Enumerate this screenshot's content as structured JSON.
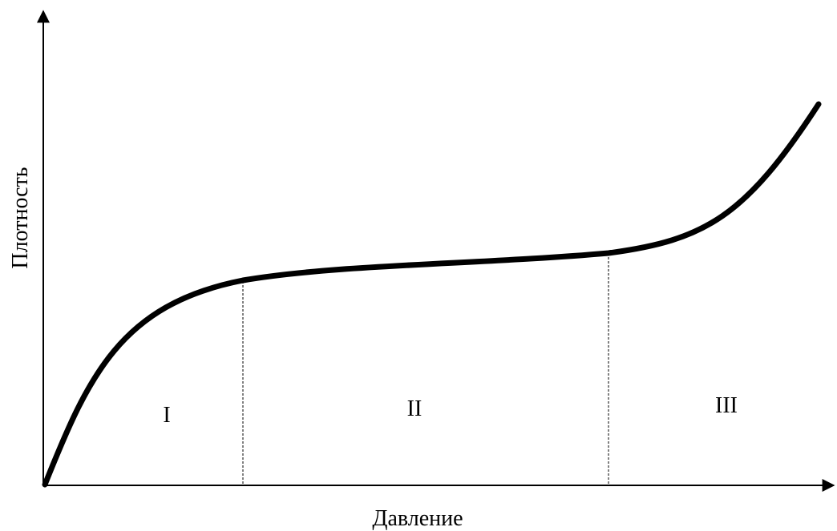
{
  "diagram": {
    "x_axis_label": "Давление",
    "y_axis_label": "Плотность",
    "zones": [
      {
        "label": "I"
      },
      {
        "label": "II"
      },
      {
        "label": "III"
      }
    ]
  },
  "colors": {
    "curve": "#000000",
    "axes": "#000000",
    "dividers": "#000000",
    "background": "#ffffff"
  }
}
